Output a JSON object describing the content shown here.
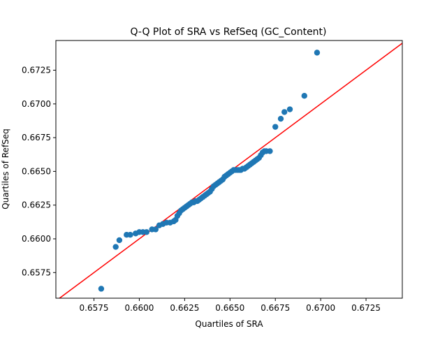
{
  "chart_data": {
    "type": "scatter",
    "title": "Q-Q Plot of SRA vs RefSeq (GC_Content)",
    "xlabel": "Quartiles of SRA",
    "ylabel": "Quartiles of RefSeq",
    "xlim": [
      0.6554,
      0.6745
    ],
    "ylim": [
      0.6556,
      0.6747
    ],
    "xticks": [
      0.6575,
      0.66,
      0.6625,
      0.665,
      0.6675,
      0.67,
      0.6725
    ],
    "yticks": [
      0.6575,
      0.66,
      0.6625,
      0.665,
      0.6675,
      0.67,
      0.6725
    ],
    "xtick_labels": [
      "0.6575",
      "0.6600",
      "0.6625",
      "0.6650",
      "0.6675",
      "0.6700",
      "0.6725"
    ],
    "ytick_labels": [
      "0.6575",
      "0.6600",
      "0.6625",
      "0.6650",
      "0.6675",
      "0.6700",
      "0.6725"
    ],
    "grid": false,
    "legend": "none",
    "point_color": "#1f77b4",
    "reference_line": {
      "color": "#ff0000",
      "slope": 1,
      "intercept": 0
    },
    "points": [
      [
        0.6579,
        0.6563
      ],
      [
        0.6587,
        0.6594
      ],
      [
        0.6589,
        0.6599
      ],
      [
        0.6593,
        0.6603
      ],
      [
        0.6595,
        0.6603
      ],
      [
        0.6598,
        0.6604
      ],
      [
        0.66,
        0.6605
      ],
      [
        0.6602,
        0.6605
      ],
      [
        0.6604,
        0.6605
      ],
      [
        0.6607,
        0.6607
      ],
      [
        0.6609,
        0.6607
      ],
      [
        0.6611,
        0.661
      ],
      [
        0.6613,
        0.6611
      ],
      [
        0.6615,
        0.6612
      ],
      [
        0.6617,
        0.6612
      ],
      [
        0.6619,
        0.6613
      ],
      [
        0.662,
        0.6614
      ],
      [
        0.6621,
        0.6617
      ],
      [
        0.6622,
        0.6619
      ],
      [
        0.6623,
        0.6621
      ],
      [
        0.6624,
        0.6622
      ],
      [
        0.6625,
        0.6623
      ],
      [
        0.6626,
        0.6624
      ],
      [
        0.6627,
        0.6625
      ],
      [
        0.6628,
        0.6626
      ],
      [
        0.6629,
        0.6627
      ],
      [
        0.663,
        0.6627
      ],
      [
        0.6631,
        0.6628
      ],
      [
        0.6632,
        0.6628
      ],
      [
        0.6633,
        0.6629
      ],
      [
        0.6634,
        0.663
      ],
      [
        0.6635,
        0.6631
      ],
      [
        0.6636,
        0.6632
      ],
      [
        0.6637,
        0.6633
      ],
      [
        0.6638,
        0.6634
      ],
      [
        0.6639,
        0.6635
      ],
      [
        0.664,
        0.6637
      ],
      [
        0.6641,
        0.6639
      ],
      [
        0.6642,
        0.664
      ],
      [
        0.6643,
        0.6641
      ],
      [
        0.6644,
        0.6642
      ],
      [
        0.6645,
        0.6643
      ],
      [
        0.6646,
        0.6644
      ],
      [
        0.6647,
        0.6646
      ],
      [
        0.6648,
        0.6647
      ],
      [
        0.6649,
        0.6648
      ],
      [
        0.665,
        0.6649
      ],
      [
        0.6651,
        0.665
      ],
      [
        0.6652,
        0.6651
      ],
      [
        0.6653,
        0.6651
      ],
      [
        0.6654,
        0.6651
      ],
      [
        0.6655,
        0.6651
      ],
      [
        0.6656,
        0.6651
      ],
      [
        0.6657,
        0.6652
      ],
      [
        0.6658,
        0.6652
      ],
      [
        0.6659,
        0.6653
      ],
      [
        0.666,
        0.6654
      ],
      [
        0.6661,
        0.6655
      ],
      [
        0.6662,
        0.6656
      ],
      [
        0.6663,
        0.6657
      ],
      [
        0.6664,
        0.6658
      ],
      [
        0.6665,
        0.6659
      ],
      [
        0.6666,
        0.666
      ],
      [
        0.6667,
        0.6662
      ],
      [
        0.6668,
        0.6664
      ],
      [
        0.6669,
        0.6665
      ],
      [
        0.667,
        0.6665
      ],
      [
        0.6672,
        0.6665
      ],
      [
        0.6675,
        0.6683
      ],
      [
        0.6678,
        0.6689
      ],
      [
        0.668,
        0.6694
      ],
      [
        0.6683,
        0.6696
      ],
      [
        0.6691,
        0.6706
      ],
      [
        0.6698,
        0.6738
      ]
    ]
  }
}
